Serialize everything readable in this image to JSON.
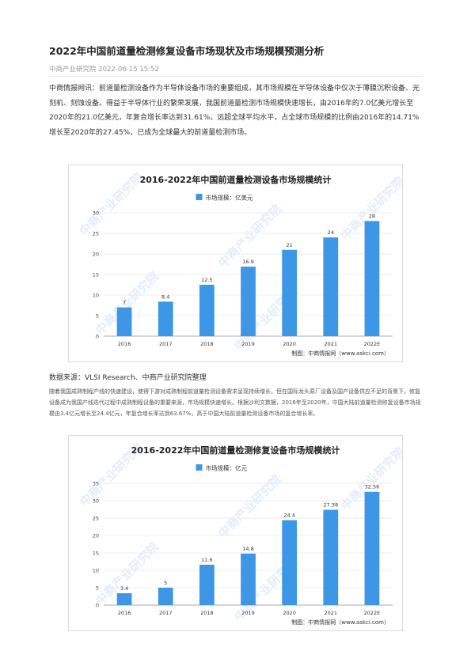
{
  "article": {
    "title": "2022年中国前道量检测修复设备市场现状及市场规模预测分析",
    "meta": "中商产业研究院 2022-06-15 15:52",
    "para1": "中商情报网讯：前道量检测设备作为半导体设备市场的重要组成，其市场规模在半导体设备中仅次于薄膜沉积设备、光刻机、刻蚀设备。得益于半导体行业的繁荣发展，我国前道量检测市场规模快速增长，由2016年的7.0亿美元增长至2020年的21.0亿美元，年复合增长率达到31.61%，远超全球平均水平，占全球市场规模的比例由2016年的14.71%增长至2020年的27.45%，已成为全球最大的前道量检测市场。",
    "source": "数据来源：VLSI Research、中商产业研究院整理",
    "para2": "随着我国成熟制程产线的快速建设，使得下游对成熟制程前道量检测设备需求呈现持续增长，但在国际龙头原厂设备及国产设备供应不足的背景下，修复设备成为我国产线迭代过程中成熟制程设备的重要来源，市场规模快速增长。根据沙利文数据，2016年至2020年，中国大陆前道量检测修复设备市场规模由3.4亿元增长至24.4亿元，年复合增长率达到63.67%，高于中国大陆前道量检测设备市场的复合增长率。"
  },
  "chart_data": [
    {
      "type": "bar",
      "title": "2016-2022年中国前道量检测设备市场规模统计",
      "categories": [
        "2016",
        "2017",
        "2018",
        "2019",
        "2020",
        "2021",
        "2022E"
      ],
      "series": [
        {
          "name": "市场规模：亿美元",
          "values": [
            7,
            8.4,
            12.5,
            16.9,
            21,
            24,
            28
          ]
        }
      ],
      "value_labels": [
        "7",
        "8.4",
        "12.5",
        "16.9",
        "21",
        "24",
        "28"
      ],
      "ylim": [
        0,
        30
      ],
      "yticks": [
        "0",
        "5",
        "10",
        "15",
        "20",
        "25",
        "30"
      ],
      "grid": true,
      "legend": "top-center",
      "credit": "制图：中商情报网（www.askci.com）",
      "watermark": "中商产业研究院",
      "color": "#3d97e6"
    },
    {
      "type": "bar",
      "title": "2016-2022年中国前道量检测修复设备市场规模统计",
      "categories": [
        "2016",
        "2017",
        "2018",
        "2019",
        "2020",
        "2021",
        "2022E"
      ],
      "series": [
        {
          "name": "市场规模：亿元",
          "values": [
            3.4,
            5,
            11.6,
            14.8,
            24.4,
            27.38,
            32.56
          ]
        }
      ],
      "value_labels": [
        "3.4",
        "5",
        "11.6",
        "14.8",
        "24.4",
        "27.38",
        "32.56"
      ],
      "ylim": [
        0,
        35
      ],
      "yticks": [
        "0",
        "5",
        "10",
        "15",
        "20",
        "25",
        "30",
        "35"
      ],
      "grid": true,
      "legend": "top-center",
      "credit": "制图：中商情报网（www.askci.com）",
      "watermark": "中商产业研究院",
      "color": "#3d97e6"
    }
  ]
}
